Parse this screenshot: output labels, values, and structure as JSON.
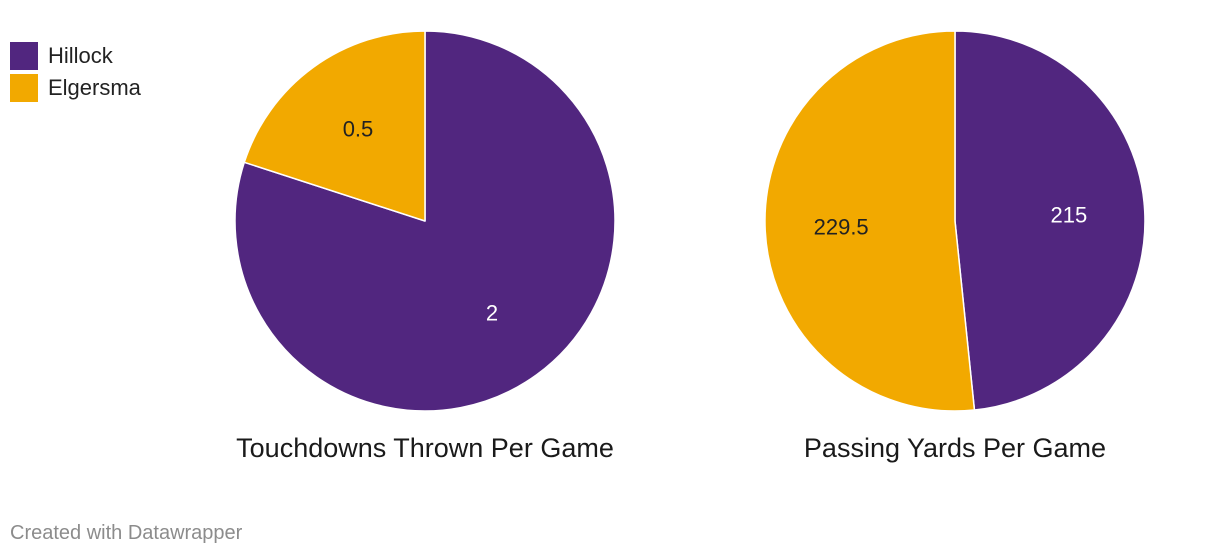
{
  "legend": {
    "items": [
      {
        "label": "Hillock",
        "color": "#51267f"
      },
      {
        "label": "Elgersma",
        "color": "#f2a900"
      }
    ]
  },
  "chart_data": [
    {
      "type": "pie",
      "title": "Touchdowns Thrown Per Game",
      "slices": [
        {
          "name": "Hillock",
          "value": 2,
          "label": "2",
          "color": "#51267f",
          "label_color": "#ffffff"
        },
        {
          "name": "Elgersma",
          "value": 0.5,
          "label": "0.5",
          "color": "#f2a900",
          "label_color": "#222222"
        }
      ]
    },
    {
      "type": "pie",
      "title": "Passing Yards Per Game",
      "slices": [
        {
          "name": "Hillock",
          "value": 215,
          "label": "215",
          "color": "#51267f",
          "label_color": "#ffffff"
        },
        {
          "name": "Elgersma",
          "value": 229.5,
          "label": "229.5",
          "color": "#f2a900",
          "label_color": "#222222"
        }
      ]
    }
  ],
  "footer": {
    "credit": "Created with Datawrapper"
  }
}
